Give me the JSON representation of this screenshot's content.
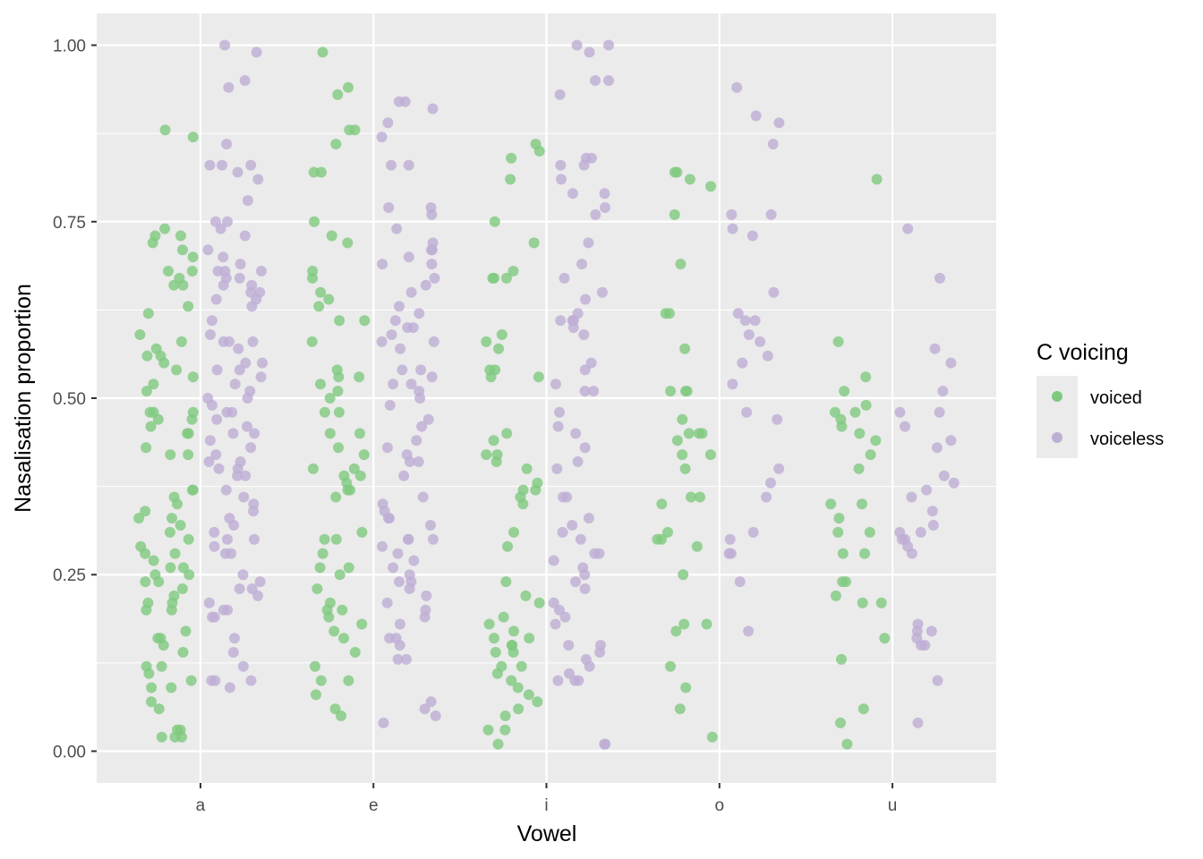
{
  "chart_data": {
    "type": "scatter",
    "title": "",
    "xlabel": "Vowel",
    "ylabel": "Nasalisation proportion",
    "categories": [
      "a",
      "e",
      "i",
      "o",
      "u"
    ],
    "ylim": [
      -0.045,
      1.045
    ],
    "y_ticks": [
      0.0,
      0.25,
      0.5,
      0.75,
      1.0
    ],
    "y_tick_labels": [
      "0.00",
      "0.25",
      "0.50",
      "0.75",
      "1.00"
    ],
    "grid": true,
    "jitter": true,
    "legend": {
      "title": "C voicing",
      "placement": "right"
    },
    "colors": {
      "voiced": "#7fc97f",
      "voiceless": "#beaed4",
      "panel": "#ebebeb",
      "grid": "#ffffff"
    },
    "series": [
      {
        "name": "voiced",
        "color": "#7fc97f",
        "values": {
          "a": [
            0.88,
            0.87,
            0.74,
            0.73,
            0.73,
            0.72,
            0.71,
            0.7,
            0.68,
            0.68,
            0.67,
            0.66,
            0.66,
            0.63,
            0.62,
            0.59,
            0.58,
            0.57,
            0.56,
            0.56,
            0.55,
            0.54,
            0.53,
            0.52,
            0.51,
            0.48,
            0.48,
            0.48,
            0.47,
            0.47,
            0.46,
            0.45,
            0.45,
            0.43,
            0.42,
            0.42,
            0.37,
            0.37,
            0.36,
            0.35,
            0.34,
            0.33,
            0.33,
            0.32,
            0.31,
            0.3,
            0.29,
            0.28,
            0.28,
            0.27,
            0.26,
            0.26,
            0.25,
            0.25,
            0.24,
            0.24,
            0.23,
            0.22,
            0.21,
            0.21,
            0.2,
            0.2,
            0.17,
            0.16,
            0.16,
            0.15,
            0.14,
            0.12,
            0.12,
            0.11,
            0.1,
            0.09,
            0.09,
            0.07,
            0.06,
            0.03,
            0.03,
            0.02,
            0.02,
            0.02
          ],
          "e": [
            0.99,
            0.94,
            0.93,
            0.88,
            0.88,
            0.86,
            0.82,
            0.82,
            0.75,
            0.73,
            0.72,
            0.68,
            0.67,
            0.65,
            0.64,
            0.63,
            0.61,
            0.61,
            0.58,
            0.54,
            0.53,
            0.53,
            0.52,
            0.51,
            0.5,
            0.48,
            0.48,
            0.45,
            0.45,
            0.43,
            0.42,
            0.4,
            0.4,
            0.39,
            0.39,
            0.38,
            0.37,
            0.37,
            0.36,
            0.31,
            0.3,
            0.3,
            0.28,
            0.26,
            0.26,
            0.25,
            0.23,
            0.21,
            0.2,
            0.2,
            0.19,
            0.18,
            0.17,
            0.16,
            0.14,
            0.12,
            0.1,
            0.1,
            0.08,
            0.06,
            0.05
          ],
          "i": [
            0.86,
            0.85,
            0.84,
            0.81,
            0.75,
            0.72,
            0.68,
            0.67,
            0.67,
            0.67,
            0.59,
            0.58,
            0.57,
            0.54,
            0.54,
            0.53,
            0.53,
            0.45,
            0.44,
            0.42,
            0.42,
            0.41,
            0.4,
            0.38,
            0.37,
            0.37,
            0.36,
            0.35,
            0.31,
            0.29,
            0.24,
            0.22,
            0.21,
            0.19,
            0.18,
            0.17,
            0.16,
            0.16,
            0.15,
            0.15,
            0.14,
            0.14,
            0.12,
            0.12,
            0.11,
            0.1,
            0.09,
            0.08,
            0.07,
            0.06,
            0.05,
            0.03,
            0.03,
            0.01
          ],
          "o": [
            0.82,
            0.82,
            0.81,
            0.8,
            0.76,
            0.69,
            0.62,
            0.62,
            0.57,
            0.51,
            0.51,
            0.51,
            0.47,
            0.45,
            0.45,
            0.45,
            0.44,
            0.42,
            0.42,
            0.4,
            0.36,
            0.36,
            0.35,
            0.31,
            0.3,
            0.3,
            0.29,
            0.25,
            0.18,
            0.18,
            0.17,
            0.12,
            0.09,
            0.06,
            0.02
          ],
          "u": [
            0.81,
            0.58,
            0.53,
            0.51,
            0.49,
            0.48,
            0.48,
            0.47,
            0.46,
            0.45,
            0.44,
            0.42,
            0.4,
            0.35,
            0.35,
            0.33,
            0.31,
            0.31,
            0.28,
            0.28,
            0.24,
            0.24,
            0.22,
            0.21,
            0.21,
            0.16,
            0.13,
            0.06,
            0.04,
            0.01
          ]
        }
      },
      {
        "name": "voiceless",
        "color": "#beaed4",
        "values": {
          "a": [
            1.0,
            0.99,
            0.95,
            0.94,
            0.86,
            0.83,
            0.83,
            0.83,
            0.82,
            0.81,
            0.78,
            0.75,
            0.75,
            0.74,
            0.73,
            0.71,
            0.7,
            0.69,
            0.68,
            0.68,
            0.68,
            0.67,
            0.67,
            0.66,
            0.66,
            0.65,
            0.65,
            0.64,
            0.64,
            0.63,
            0.61,
            0.59,
            0.58,
            0.58,
            0.58,
            0.57,
            0.55,
            0.55,
            0.54,
            0.54,
            0.53,
            0.52,
            0.51,
            0.5,
            0.5,
            0.49,
            0.48,
            0.48,
            0.47,
            0.46,
            0.45,
            0.45,
            0.44,
            0.43,
            0.42,
            0.41,
            0.41,
            0.4,
            0.4,
            0.39,
            0.39,
            0.37,
            0.36,
            0.35,
            0.34,
            0.33,
            0.32,
            0.31,
            0.3,
            0.3,
            0.29,
            0.28,
            0.28,
            0.25,
            0.24,
            0.23,
            0.23,
            0.22,
            0.21,
            0.2,
            0.2,
            0.19,
            0.19,
            0.16,
            0.14,
            0.12,
            0.1,
            0.1,
            0.1,
            0.09
          ],
          "e": [
            0.92,
            0.92,
            0.91,
            0.89,
            0.87,
            0.83,
            0.83,
            0.77,
            0.77,
            0.76,
            0.74,
            0.72,
            0.71,
            0.71,
            0.7,
            0.69,
            0.69,
            0.67,
            0.66,
            0.65,
            0.63,
            0.62,
            0.61,
            0.6,
            0.6,
            0.59,
            0.58,
            0.58,
            0.57,
            0.54,
            0.54,
            0.53,
            0.52,
            0.52,
            0.51,
            0.5,
            0.49,
            0.47,
            0.46,
            0.44,
            0.43,
            0.42,
            0.41,
            0.41,
            0.39,
            0.36,
            0.35,
            0.34,
            0.33,
            0.33,
            0.32,
            0.3,
            0.3,
            0.3,
            0.29,
            0.28,
            0.27,
            0.26,
            0.25,
            0.24,
            0.24,
            0.23,
            0.22,
            0.21,
            0.2,
            0.19,
            0.18,
            0.16,
            0.16,
            0.15,
            0.13,
            0.13,
            0.07,
            0.06,
            0.05,
            0.04
          ],
          "i": [
            1.0,
            1.0,
            0.99,
            0.95,
            0.95,
            0.93,
            0.84,
            0.84,
            0.83,
            0.83,
            0.81,
            0.79,
            0.79,
            0.77,
            0.76,
            0.72,
            0.69,
            0.67,
            0.65,
            0.64,
            0.62,
            0.61,
            0.61,
            0.61,
            0.6,
            0.59,
            0.55,
            0.54,
            0.52,
            0.51,
            0.51,
            0.48,
            0.46,
            0.45,
            0.43,
            0.41,
            0.4,
            0.36,
            0.36,
            0.33,
            0.32,
            0.31,
            0.3,
            0.28,
            0.28,
            0.27,
            0.26,
            0.25,
            0.24,
            0.23,
            0.21,
            0.2,
            0.19,
            0.18,
            0.15,
            0.15,
            0.14,
            0.13,
            0.12,
            0.11,
            0.1,
            0.1,
            0.1,
            0.01,
            0.01
          ],
          "o": [
            0.94,
            0.9,
            0.89,
            0.86,
            0.76,
            0.76,
            0.74,
            0.73,
            0.65,
            0.62,
            0.61,
            0.61,
            0.59,
            0.58,
            0.56,
            0.55,
            0.52,
            0.48,
            0.47,
            0.4,
            0.38,
            0.36,
            0.31,
            0.3,
            0.28,
            0.28,
            0.24,
            0.17
          ],
          "u": [
            0.74,
            0.67,
            0.57,
            0.55,
            0.51,
            0.48,
            0.48,
            0.46,
            0.44,
            0.43,
            0.39,
            0.38,
            0.37,
            0.36,
            0.34,
            0.32,
            0.31,
            0.31,
            0.3,
            0.3,
            0.29,
            0.28,
            0.18,
            0.17,
            0.17,
            0.16,
            0.15,
            0.15,
            0.1,
            0.04
          ]
        }
      }
    ]
  }
}
